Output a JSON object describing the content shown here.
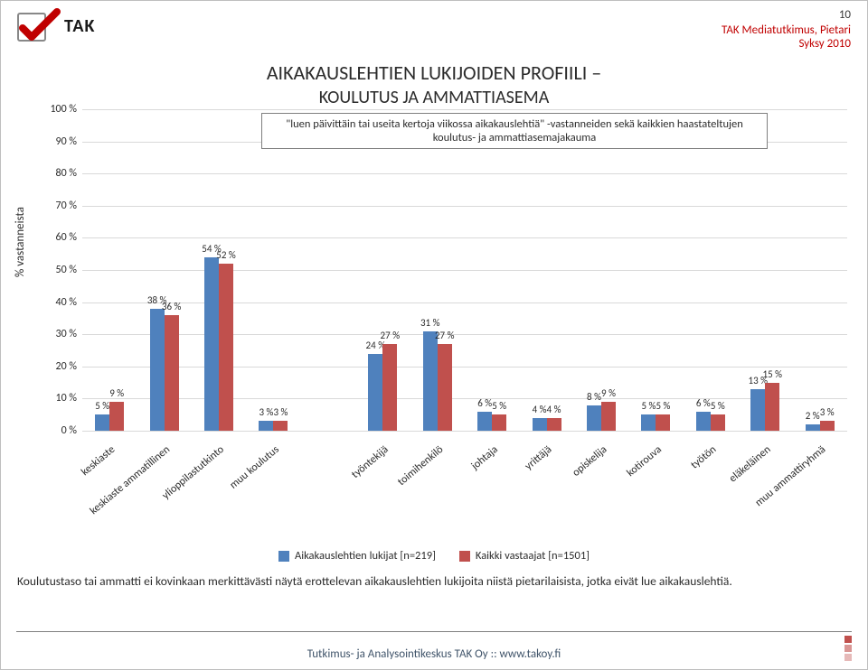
{
  "page_number": "10",
  "header": {
    "logo_text": "TAK",
    "logo_checkmark_color": "#c00000",
    "study_line1": "TAK Mediatutkimus, Pietari",
    "study_line2": "Syksy 2010"
  },
  "chart": {
    "type": "bar",
    "title_upper": "AIKAKAUSLEHTIEN LUKIJOIDEN PROFIILI –",
    "title_lower": "KOULUTUS JA AMMATTIASEMA",
    "subtitle": "\"luen päivittäin tai useita kertoja viikossa aikakauslehtiä\" -vastanneiden sekä kaikkien haastateltujen koulutus- ja ammattiasemajakauma",
    "y_axis_label": "% vastanneista",
    "y_min": 0,
    "y_max": 100,
    "y_tick_step": 10,
    "grid_color": "#d9d9d9",
    "background_color": "#ffffff",
    "series": [
      {
        "name": "Aikakauslehtien lukijat [n=219]",
        "color": "#4f81bd"
      },
      {
        "name": "Kaikki vastaajat [n=1501]",
        "color": "#c0504d"
      }
    ],
    "categories": [
      {
        "label": "keskiaste",
        "values": [
          5,
          9
        ],
        "labels": [
          "5 %",
          "9 %"
        ]
      },
      {
        "label": "keskiaste ammatillinen",
        "values": [
          38,
          36
        ],
        "labels": [
          "38 %",
          "36 %"
        ]
      },
      {
        "label": "ylioppilastutkinto",
        "values": [
          54,
          52
        ],
        "labels": [
          "54 %",
          "52 %"
        ]
      },
      {
        "label": "muu koulutus",
        "values": [
          3,
          3
        ],
        "labels": [
          "3 %",
          "3 %"
        ]
      },
      {
        "label": "",
        "values": [
          null,
          null
        ],
        "labels": [
          "",
          ""
        ]
      },
      {
        "label": "työntekijä",
        "values": [
          24,
          27
        ],
        "labels": [
          "24 %",
          "27 %"
        ]
      },
      {
        "label": "toimihenkilö",
        "values": [
          31,
          27
        ],
        "labels": [
          "31 %",
          "27 %"
        ]
      },
      {
        "label": "johtaja",
        "values": [
          6,
          5
        ],
        "labels": [
          "6 %",
          "5 %"
        ]
      },
      {
        "label": "yrittäjä",
        "values": [
          4,
          4
        ],
        "labels": [
          "4 %",
          "4 %"
        ]
      },
      {
        "label": "opiskelija",
        "values": [
          8,
          9
        ],
        "labels": [
          "8 %",
          "9 %"
        ]
      },
      {
        "label": "kotirouva",
        "values": [
          5,
          5
        ],
        "labels": [
          "5 %",
          "5 %"
        ]
      },
      {
        "label": "työtön",
        "values": [
          6,
          5
        ],
        "labels": [
          "6 %",
          "5 %"
        ]
      },
      {
        "label": "eläkeläinen",
        "values": [
          13,
          15
        ],
        "labels": [
          "13 %",
          "15 %"
        ]
      },
      {
        "label": "muu ammattiryhmä",
        "values": [
          2,
          3
        ],
        "labels": [
          "2 %",
          "3 %"
        ]
      }
    ]
  },
  "footer_note": "Koulutustaso tai ammatti ei kovinkaan merkittävästi näytä erottelevan aikakauslehtien lukijoita niistä pietarilaisista, jotka eivät lue aikakauslehtiä.",
  "footer_center": "Tutkimus- ja Analysointikeskus TAK Oy :: www.takoy.fi",
  "footer_square_colors": [
    "#c0504d",
    "#d99694",
    "#e6b9b8"
  ]
}
